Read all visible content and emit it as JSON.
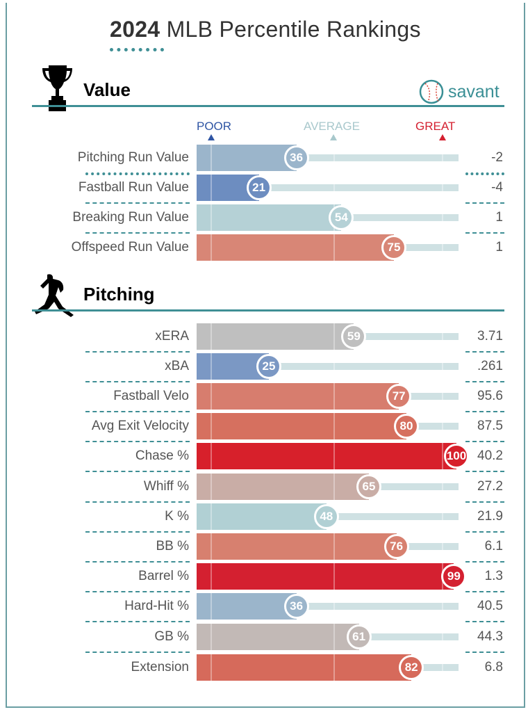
{
  "title_year": "2024",
  "title_rest": " MLB Percentile Rankings",
  "brand": "savant",
  "chart_data": {
    "type": "bar",
    "title": "2024 MLB Percentile Rankings",
    "scale_labels": {
      "poor": "POOR",
      "average": "AVERAGE",
      "great": "GREAT"
    },
    "xlim": [
      0,
      100
    ],
    "sections": [
      {
        "name": "Value",
        "rows": [
          {
            "label": "Pitching Run Value",
            "percentile": 36,
            "value": "-2",
            "color": "#9bb5cb"
          },
          {
            "label": "Fastball Run Value",
            "percentile": 21,
            "value": "-4",
            "color": "#6d8dc0"
          },
          {
            "label": "Breaking Run Value",
            "percentile": 54,
            "value": "1",
            "color": "#b5d1d6"
          },
          {
            "label": "Offspeed Run Value",
            "percentile": 75,
            "value": "1",
            "color": "#d88676"
          }
        ]
      },
      {
        "name": "Pitching",
        "rows": [
          {
            "label": "xERA",
            "percentile": 59,
            "value": "3.71",
            "color": "#bfbfbf"
          },
          {
            "label": "xBA",
            "percentile": 25,
            "value": ".261",
            "color": "#7b98c4"
          },
          {
            "label": "Fastball Velo",
            "percentile": 77,
            "value": "95.6",
            "color": "#d77d6e"
          },
          {
            "label": "Avg Exit Velocity",
            "percentile": 80,
            "value": "87.5",
            "color": "#d6705f"
          },
          {
            "label": "Chase %",
            "percentile": 100,
            "value": "40.2",
            "color": "#d7202b"
          },
          {
            "label": "Whiff %",
            "percentile": 65,
            "value": "27.2",
            "color": "#c9ada6"
          },
          {
            "label": "K %",
            "percentile": 48,
            "value": "21.9",
            "color": "#b1d0d4"
          },
          {
            "label": "BB %",
            "percentile": 76,
            "value": "6.1",
            "color": "#d7806f"
          },
          {
            "label": "Barrel %",
            "percentile": 99,
            "value": "1.3",
            "color": "#d42030"
          },
          {
            "label": "Hard-Hit %",
            "percentile": 36,
            "value": "40.5",
            "color": "#9bb5cb"
          },
          {
            "label": "GB %",
            "percentile": 61,
            "value": "44.3",
            "color": "#c2b9b6"
          },
          {
            "label": "Extension",
            "percentile": 82,
            "value": "6.8",
            "color": "#d66a5b"
          }
        ]
      }
    ]
  },
  "colors": {
    "poor": "#2f55a4",
    "average": "#a8c8cc",
    "great": "#d42030",
    "accent": "#3f8f95"
  }
}
